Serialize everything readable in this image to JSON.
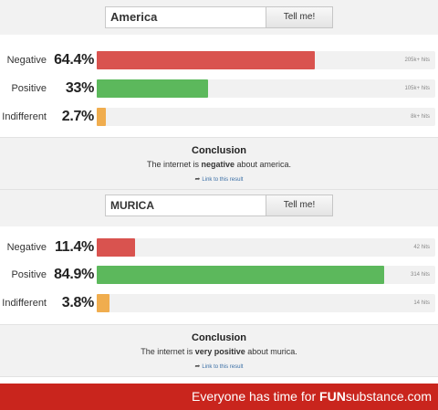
{
  "queries": [
    {
      "search_value": "America",
      "button_label": "Tell me!",
      "results": [
        {
          "label": "Negative",
          "percent_text": "64.4%",
          "fraction": 0.644,
          "hits": "205k+ hits",
          "kind": "negative",
          "color": "#d9534f"
        },
        {
          "label": "Positive",
          "percent_text": "33%",
          "fraction": 0.33,
          "hits": "105k+ hits",
          "kind": "positive",
          "color": "#5cb85c"
        },
        {
          "label": "Indifferent",
          "percent_text": "2.7%",
          "fraction": 0.027,
          "hits": "8k+ hits",
          "kind": "indifferent",
          "color": "#f0ad4e"
        }
      ],
      "conclusion": {
        "title": "Conclusion",
        "text_before": "The internet is ",
        "text_bold": "negative",
        "text_after": " about america.",
        "link_label": "Link to this result"
      }
    },
    {
      "search_value": "MURICA",
      "button_label": "Tell me!",
      "results": [
        {
          "label": "Negative",
          "percent_text": "11.4%",
          "fraction": 0.114,
          "hits": "42 hits",
          "kind": "negative",
          "color": "#d9534f"
        },
        {
          "label": "Positive",
          "percent_text": "84.9%",
          "fraction": 0.849,
          "hits": "314 hits",
          "kind": "positive",
          "color": "#5cb85c"
        },
        {
          "label": "Indifferent",
          "percent_text": "3.8%",
          "fraction": 0.038,
          "hits": "14 hits",
          "kind": "indifferent",
          "color": "#f0ad4e"
        }
      ],
      "conclusion": {
        "title": "Conclusion",
        "text_before": "The internet is ",
        "text_bold": "very positive",
        "text_after": " about murica.",
        "link_label": "Link to this result"
      }
    }
  ],
  "footer": {
    "text": "Everyone has time for ",
    "brand_bold": "FUN",
    "brand_rest": "substance",
    "brand_suffix": ".com",
    "color": "#c9251d"
  }
}
